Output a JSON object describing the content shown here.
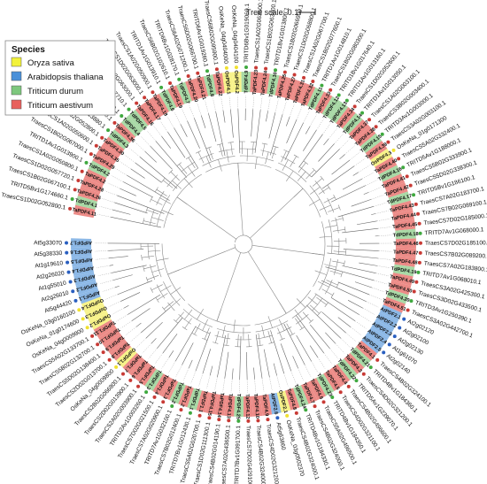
{
  "scale": {
    "label": "Tree scale: 0.1"
  },
  "legend": {
    "title": "Species",
    "items": [
      {
        "label": "Oryza sativa",
        "color": "#f2f23a"
      },
      {
        "label": "Arabidopsis thaliana",
        "color": "#4a90d9"
      },
      {
        "label": "Triticum durum",
        "color": "#7dc77d"
      },
      {
        "label": "Triticum aestivum",
        "color": "#e8605c"
      }
    ]
  },
  "leaves": [
    {
      "name": "TraesCS1D02G052800.1",
      "short": "TaPDF4.11",
      "sp": 3
    },
    {
      "name": "TRITD5Bv1G174660.1",
      "short": "TdPDF4.1",
      "sp": 2
    },
    {
      "name": "TraesCS1B02G067100.1",
      "short": "TaPDF4.26",
      "sp": 3
    },
    {
      "name": "TraesCS1D02G057720.1",
      "short": "TaPDF4.28",
      "sp": 3
    },
    {
      "name": "TraesCS1A02G050800.1",
      "short": "TaPDF4.2",
      "sp": 3
    },
    {
      "name": "TRITD1Av1G013900.1",
      "short": "TdPDF4.2",
      "sp": 2
    },
    {
      "name": "TraesCS1B02G067000.1",
      "short": "TaPDF4.29",
      "sp": 3
    },
    {
      "name": "TraesCS1A02G050600.1",
      "short": "TaPDF4.35",
      "sp": 3
    },
    {
      "name": "TraesCS1D02G052800.1",
      "short": "TaPDF4.30",
      "sp": 3
    },
    {
      "name": "TRITD1Av1G013880.1",
      "short": "TdPDF4.3",
      "sp": 2
    },
    {
      "name": "TraesCS1A02G050700.1",
      "short": "TaPDF4.36",
      "sp": 3
    },
    {
      "name": "TRITD1Av1G013870.1",
      "short": "TdPDF4.4",
      "sp": 2
    },
    {
      "name": "TRITD1Bv1G017710.1",
      "short": "TdPDF4.5",
      "sp": 2
    },
    {
      "name": "TraesCS1B02G063000.1",
      "short": "TaPDF4.16",
      "sp": 3
    },
    {
      "name": "TraesCS1D02G063000.1",
      "short": "TaPDF4.17",
      "sp": 3
    },
    {
      "name": "TraesCS1A02G050900.1",
      "short": "TaPDF4.18",
      "sp": 3
    },
    {
      "name": "TRITD1Av1G013910.1",
      "short": "TdPDF4.6",
      "sp": 2
    },
    {
      "name": "TraesCS6B02G102610.1",
      "short": "TaPDF4.19",
      "sp": 3
    },
    {
      "name": "TRITD6Bv1G028170.1",
      "short": "TdPDF4.7",
      "sp": 2
    },
    {
      "name": "TraesCS6A02G071200.1",
      "short": "TaPDF4.20",
      "sp": 3
    },
    {
      "name": "TraesCS6D02G066700.1",
      "short": "TaPDF4.21",
      "sp": 3
    },
    {
      "name": "TRITD6Av1G019260.1",
      "short": "TdPDF4.8",
      "sp": 2
    },
    {
      "name": "TraesCS6B02G095900.1",
      "short": "TaPDF4.22",
      "sp": 3
    },
    {
      "name": "OsKeNa_04g0404000",
      "short": "OsPDF4.1",
      "sp": 0
    },
    {
      "name": "OsKeNa_04g0404100",
      "short": "OsPDF4.2",
      "sp": 0
    },
    {
      "name": "TRITD6Bv1G019060.1",
      "short": "TdPDF4.9",
      "sp": 2
    },
    {
      "name": "TraesCS1A02G063500.1",
      "short": "TaPDF4.23",
      "sp": 3
    },
    {
      "name": "TraesCS1B02G063800.1",
      "short": "TaPDF4.24",
      "sp": 3
    },
    {
      "name": "TRITD1Bv1G013800.1",
      "short": "TdPDF4.10",
      "sp": 2
    },
    {
      "name": "TraesCS1B02G066900.1",
      "short": "TaPDF4.25",
      "sp": 3
    },
    {
      "name": "TraesCS1D02G068800.1",
      "short": "TaPDF4.27",
      "sp": 3
    },
    {
      "name": "TraesCS1A02G067700.1",
      "short": "TaPDF4.31",
      "sp": 3
    },
    {
      "name": "TraesCS1B02G077600.1",
      "short": "TaPDF4.32",
      "sp": 3
    },
    {
      "name": "TRITD1Av1G014810.1",
      "short": "TdPDF4.11",
      "sp": 2
    },
    {
      "name": "TraesCS1B02G080300.1",
      "short": "TaPDF4.33",
      "sp": 3
    },
    {
      "name": "TRITD1Bv1G017640.1",
      "short": "TdPDF4.12",
      "sp": 2
    },
    {
      "name": "TRITD1Av1G013160.1",
      "short": "TdPDF4.13",
      "sp": 2
    },
    {
      "name": "TraesCS1D02G052600.1",
      "short": "TaPDF4.34",
      "sp": 3
    },
    {
      "name": "TRITD1Av1G013050.1",
      "short": "TdPDF4.14",
      "sp": 2
    },
    {
      "name": "TraesCS1A02G003100.1",
      "short": "TaPDF4.37",
      "sp": 3
    },
    {
      "name": "TraesCS3B02G003400.1",
      "short": "TaPDF4.38",
      "sp": 3
    },
    {
      "name": "TRITD3Av1G003000.1",
      "short": "TdPDF4.15",
      "sp": 2
    },
    {
      "name": "TraesCS3A02G003100.1",
      "short": "TaPDF4.39",
      "sp": 3
    },
    {
      "name": "OsKeNa_01g0171300",
      "short": "OsPDF4.3",
      "sp": 0
    },
    {
      "name": "TraesCS5A02G332400.1",
      "short": "TaPDF4.40",
      "sp": 3
    },
    {
      "name": "TRITD5Av1G188000.1",
      "short": "TdPDF4.16",
      "sp": 2
    },
    {
      "name": "TraesCS5B02G333900.1",
      "short": "TaPDF4.41",
      "sp": 3
    },
    {
      "name": "TraesCS5D02G338300.1",
      "short": "TaPDF4.42",
      "sp": 3
    },
    {
      "name": "TRITD5Bv1G186100.1",
      "short": "TdPDF4.17",
      "sp": 2
    },
    {
      "name": "TraesCS7A02G183700.1",
      "short": "TaPDF4.43",
      "sp": 3
    },
    {
      "name": "TraesCS7B02G089100.1",
      "short": "TaPDF4.44",
      "sp": 3
    },
    {
      "name": "TraesCS7D02G185000.1",
      "short": "TaPDF4.45",
      "sp": 3
    },
    {
      "name": "TRITD7Av1G068000.1",
      "short": "TdPDF4.18",
      "sp": 2
    },
    {
      "name": "TraesCS7D02G185100.1",
      "short": "TaPDF4.46",
      "sp": 3
    },
    {
      "name": "TraesCS7B02G089200.1",
      "short": "TaPDF4.47",
      "sp": 3
    },
    {
      "name": "TraesCS7A02G183800.1",
      "short": "TaPDF4.48",
      "sp": 3
    },
    {
      "name": "TRITD7Av1G068010.1",
      "short": "TdPDF4.19",
      "sp": 2
    },
    {
      "name": "TraesCS3A02G425300.1",
      "short": "TaPDF4.49",
      "sp": 3
    },
    {
      "name": "TraesCS3D02G433500.1",
      "short": "TaPDF4.50",
      "sp": 3
    },
    {
      "name": "TRITD3Av1G250390.1",
      "short": "TdPDF4.20",
      "sp": 2
    },
    {
      "name": "TraesCS3A02G442700.1",
      "short": "TaPDF4.51",
      "sp": 3
    },
    {
      "name": "At2g02120",
      "short": "AtPDF2.1",
      "sp": 1
    },
    {
      "name": "At2g02100",
      "short": "AtPDF2.2",
      "sp": 1
    },
    {
      "name": "At2g02130",
      "short": "AtPDF2.3",
      "sp": 1
    },
    {
      "name": "At1g61070",
      "short": "AtPDF2.4",
      "sp": 1
    },
    {
      "name": "At2g02140",
      "short": "AtPDF2.5",
      "sp": 1
    },
    {
      "name": "TraesCS4B02G324100.1",
      "short": "TaPDF4.1",
      "sp": 3
    },
    {
      "name": "TRITD4Bv1G184360.1",
      "short": "TdPDF4.21",
      "sp": 2
    },
    {
      "name": "TraesCS4D02G321200.1",
      "short": "TaPDF4.3",
      "sp": 3
    },
    {
      "name": "TRITD5Av1G239070.1",
      "short": "TdPDF4.22",
      "sp": 2
    },
    {
      "name": "TraesCS4B02G496600.1",
      "short": "TaPDF4.4",
      "sp": 3
    },
    {
      "name": "TraesCS4D02G321100.1",
      "short": "TaPDF4.5",
      "sp": 3
    },
    {
      "name": "TRITD4Bv1G184350.1",
      "short": "TdPDF4.23",
      "sp": 2
    },
    {
      "name": "TraesCS5A02G496500.1",
      "short": "TaPDF4.6",
      "sp": 3
    },
    {
      "name": "TraesCS4B02G324000.1",
      "short": "TaPDF4.7",
      "sp": 3
    },
    {
      "name": "TRITD4Bv1G184330.1",
      "short": "TdPDF4.24",
      "sp": 2
    },
    {
      "name": "TraesCS4B02G324000.1",
      "short": "TaPDF4.8",
      "sp": 3
    },
    {
      "name": "OsKeNa_03g0502370",
      "short": "OsPDF2.1",
      "sp": 0
    },
    {
      "name": "At5g63660",
      "short": "AtPDF2.6",
      "sp": 1
    },
    {
      "name": "TraesCS4D02G321200.1",
      "short": "TaPDF4.9",
      "sp": 3
    },
    {
      "name": "TraesCS4B02G324000.1",
      "short": "TaPDF4.10",
      "sp": 3
    },
    {
      "name": "TraesCS7D02G429100.1",
      "short": "TaPDF4.12",
      "sp": 3
    },
    {
      "name": "TRITD7Bv1G091700.1",
      "short": "TdPDF4.25",
      "sp": 2
    },
    {
      "name": "TraesCS7A02G436500.1",
      "short": "TaPDF4.13",
      "sp": 3
    },
    {
      "name": "TraesCS4B02G014190.1",
      "short": "TaPDF4.14",
      "sp": 3
    },
    {
      "name": "TraesCS1D02G111300.1",
      "short": "TaPDF4.15",
      "sp": 3
    },
    {
      "name": "TraesCS5A02G020700.1",
      "short": "TaPDF1.1",
      "sp": 3
    },
    {
      "name": "TRITD7Bv1G012430.1",
      "short": "TdPDF1.1",
      "sp": 2
    },
    {
      "name": "TraesCS7B02G012400.1",
      "short": "TaPDF1.2",
      "sp": 3
    },
    {
      "name": "TRITD7Av1G032100.1",
      "short": "TdPDF1.2",
      "sp": 2
    },
    {
      "name": "TraesCS7A02G020900.1",
      "short": "TaPDF1.3",
      "sp": 3
    },
    {
      "name": "TraesCS7D02G021500.1",
      "short": "TaPDF1.4",
      "sp": 3
    },
    {
      "name": "TRITD2Av1G003260.1",
      "short": "TdPDF1.3",
      "sp": 2
    },
    {
      "name": "TraesCS2A02G003900.1",
      "short": "TaPDF1.5",
      "sp": 3
    },
    {
      "name": "TraesCS2D02G013900.1",
      "short": "TaPDF1.6",
      "sp": 3
    },
    {
      "name": "TraesCS2B02G066800.1",
      "short": "TaPDF1.7",
      "sp": 3
    },
    {
      "name": "OsKeNa_04g0009800",
      "short": "OsPDF1.1",
      "sp": 0
    },
    {
      "name": "TraesCS2D02G013700.1",
      "short": "TaPDF1.8",
      "sp": 3
    },
    {
      "name": "TraesCS5D02G138400.1",
      "short": "TaPDF1.9",
      "sp": 3
    },
    {
      "name": "TraesCS5B02G132700.1",
      "short": "TaPDF1.10",
      "sp": 3
    },
    {
      "name": "TraesCS5A02G133700.1",
      "short": "TaPDF1.11",
      "sp": 3
    },
    {
      "name": "OsKeNa_04g0009900",
      "short": "OsPDF1.2",
      "sp": 0
    },
    {
      "name": "OsKeNa_01g0174600",
      "short": "OsPDF1.3",
      "sp": 0
    },
    {
      "name": "OsKeNa_03g0160100",
      "short": "OsPDF1.4",
      "sp": 0
    },
    {
      "name": "At5g44420",
      "short": "AtPDF1.1",
      "sp": 1
    },
    {
      "name": "At2g26010",
      "short": "AtPDF1.2",
      "sp": 1
    },
    {
      "name": "At1g55010",
      "short": "AtPDF1.3",
      "sp": 1
    },
    {
      "name": "At2g26020",
      "short": "AtPDF1.4",
      "sp": 1
    },
    {
      "name": "At1g19610",
      "short": "AtPDF1.5",
      "sp": 1
    },
    {
      "name": "At5g38330",
      "short": "AtPDF1.6",
      "sp": 1
    },
    {
      "name": "At5g33070",
      "short": "AtPDF1.7",
      "sp": 1
    }
  ]
}
